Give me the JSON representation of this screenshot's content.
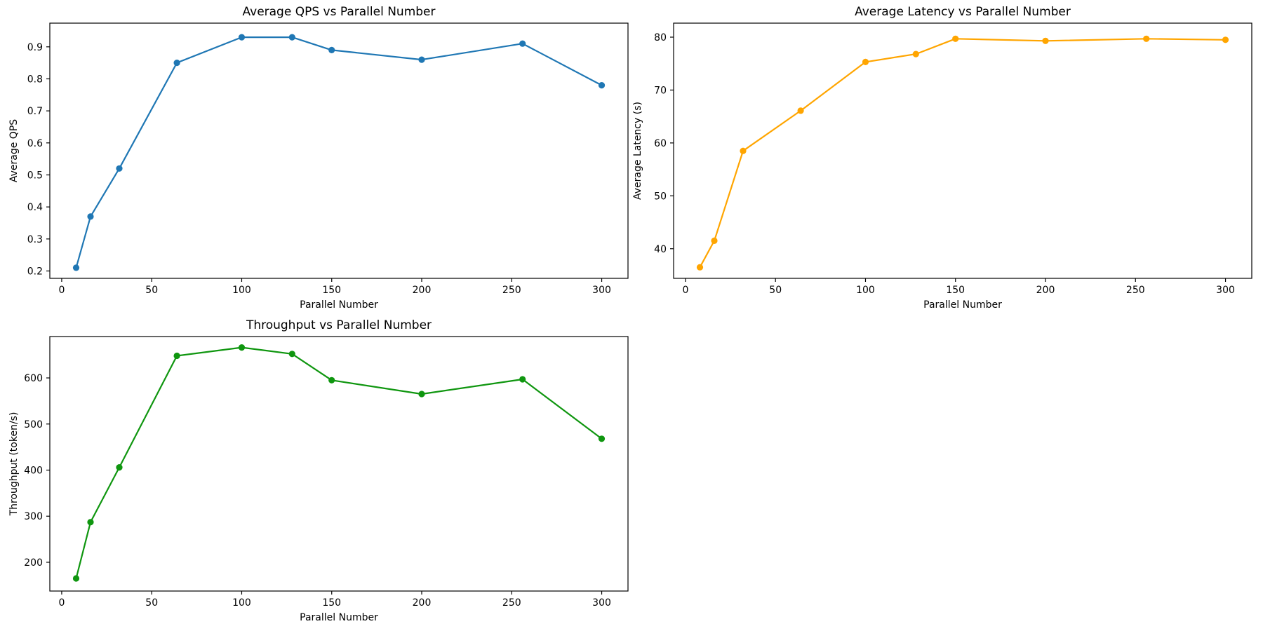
{
  "page": {
    "background": "#ffffff",
    "figure_description": "Three line charts: QPS, latency and throughput versus parallel number"
  },
  "chart_data": [
    {
      "id": "average-qps",
      "type": "line",
      "title": "Average QPS vs Parallel Number",
      "xlabel": "Parallel Number",
      "ylabel": "Average QPS",
      "color": "#1f77b4",
      "marker": "circle",
      "grid": false,
      "legend": null,
      "x": [
        8,
        16,
        32,
        64,
        100,
        128,
        150,
        200,
        256,
        300
      ],
      "y": [
        0.21,
        0.37,
        0.52,
        0.85,
        0.93,
        0.93,
        0.89,
        0.86,
        0.91,
        0.78
      ],
      "xlim": [
        -6.6,
        314.6
      ],
      "ylim": [
        0.177,
        0.974
      ],
      "xticks": [
        0,
        50,
        100,
        150,
        200,
        250,
        300
      ],
      "xtick_labels": [
        "0",
        "50",
        "100",
        "150",
        "200",
        "250",
        "300"
      ],
      "yticks": [
        0.2,
        0.3,
        0.4,
        0.5,
        0.6,
        0.7,
        0.8,
        0.9
      ],
      "ytick_labels": [
        "0.2",
        "0.3",
        "0.4",
        "0.5",
        "0.6",
        "0.7",
        "0.8",
        "0.9"
      ]
    },
    {
      "id": "average-latency",
      "type": "line",
      "title": "Average Latency vs Parallel Number",
      "xlabel": "Parallel Number",
      "ylabel": "Average Latency (s)",
      "color": "#ffa500",
      "marker": "circle",
      "grid": false,
      "legend": null,
      "x": [
        8,
        16,
        32,
        64,
        100,
        128,
        150,
        200,
        256,
        300
      ],
      "y": [
        36.5,
        41.5,
        58.5,
        66.1,
        75.3,
        76.8,
        79.7,
        79.3,
        79.7,
        79.5
      ],
      "xlim": [
        -6.6,
        314.6
      ],
      "ylim": [
        34.4,
        82.65
      ],
      "xticks": [
        0,
        50,
        100,
        150,
        200,
        250,
        300
      ],
      "xtick_labels": [
        "0",
        "50",
        "100",
        "150",
        "200",
        "250",
        "300"
      ],
      "yticks": [
        40,
        50,
        60,
        70,
        80
      ],
      "ytick_labels": [
        "40",
        "50",
        "60",
        "70",
        "80"
      ]
    },
    {
      "id": "throughput",
      "type": "line",
      "title": "Throughput vs Parallel Number",
      "xlabel": "Parallel Number",
      "ylabel": "Throughput (token/s)",
      "color": "#0f960f",
      "marker": "circle",
      "grid": false,
      "legend": null,
      "x": [
        8,
        16,
        32,
        64,
        100,
        128,
        150,
        200,
        256,
        300
      ],
      "y": [
        165,
        287,
        406,
        648,
        666,
        652,
        595,
        565,
        597,
        468
      ],
      "xlim": [
        -6.6,
        314.6
      ],
      "ylim": [
        137.6,
        689.8
      ],
      "xticks": [
        0,
        50,
        100,
        150,
        200,
        250,
        300
      ],
      "xtick_labels": [
        "0",
        "50",
        "100",
        "150",
        "200",
        "250",
        "300"
      ],
      "yticks": [
        200,
        300,
        400,
        500,
        600
      ],
      "ytick_labels": [
        "200",
        "300",
        "400",
        "500",
        "600"
      ]
    }
  ]
}
